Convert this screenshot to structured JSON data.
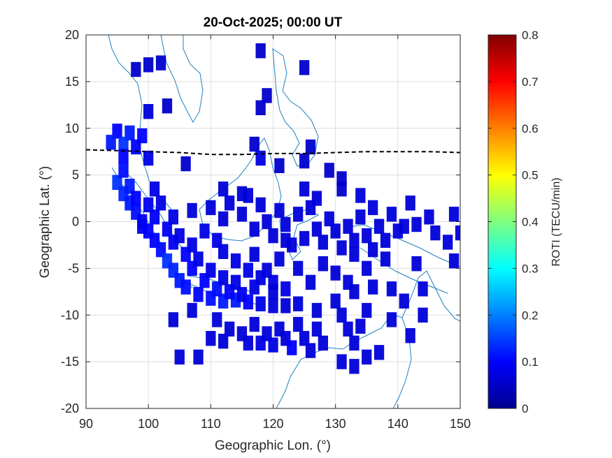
{
  "chart_data": {
    "type": "heatmap",
    "title": "20-Oct-2025; 00:00 UT",
    "xlabel": "Geographic Lon. (°)",
    "ylabel": "Geographic Lat. (°)",
    "xlim": [
      90,
      150
    ],
    "ylim": [
      -20,
      20
    ],
    "xticks": [
      "90",
      "100",
      "110",
      "120",
      "130",
      "140",
      "150"
    ],
    "yticks": [
      "20",
      "15",
      "10",
      "5",
      "0",
      "-5",
      "-10",
      "-15",
      "-20"
    ],
    "grid": true,
    "colorbar": {
      "label": "ROTI (TECU/min)",
      "range": [
        0,
        0.8
      ],
      "ticks": [
        "0.8",
        "0.7",
        "0.6",
        "0.5",
        "0.4",
        "0.3",
        "0.2",
        "0.1",
        "0"
      ],
      "colormap": "jet"
    },
    "magnetic_equator": [
      [
        90,
        7.7
      ],
      [
        95,
        7.6
      ],
      [
        100,
        7.5
      ],
      [
        105,
        7.4
      ],
      [
        110,
        7.2
      ],
      [
        115,
        7.2
      ],
      [
        120,
        7.3
      ],
      [
        125,
        7.3
      ],
      [
        130,
        7.4
      ],
      [
        135,
        7.5
      ],
      [
        140,
        7.5
      ],
      [
        145,
        7.5
      ],
      [
        150,
        7.4
      ]
    ],
    "cells": [
      [
        98,
        16.3,
        0.06
      ],
      [
        100,
        16.8,
        0.06
      ],
      [
        102,
        17.0,
        0.06
      ],
      [
        118,
        18.3,
        0.06
      ],
      [
        125,
        16.5,
        0.06
      ],
      [
        100,
        11.8,
        0.07
      ],
      [
        103,
        12.4,
        0.06
      ],
      [
        119,
        13.5,
        0.06
      ],
      [
        118,
        12.2,
        0.06
      ],
      [
        95,
        9.7,
        0.1
      ],
      [
        97,
        9.5,
        0.12
      ],
      [
        99,
        9.2,
        0.1
      ],
      [
        96,
        8.3,
        0.14
      ],
      [
        98,
        8.0,
        0.1
      ],
      [
        100,
        6.8,
        0.08
      ],
      [
        106,
        6.2,
        0.06
      ],
      [
        117,
        8.3,
        0.06
      ],
      [
        118,
        6.8,
        0.08
      ],
      [
        121,
        6.0,
        0.06
      ],
      [
        125,
        6.5,
        0.06
      ],
      [
        126,
        8.0,
        0.06
      ],
      [
        129,
        5.5,
        0.06
      ],
      [
        131,
        4.6,
        0.06
      ],
      [
        131,
        3.5,
        0.06
      ],
      [
        95,
        4.2,
        0.14
      ],
      [
        96,
        3.0,
        0.13
      ],
      [
        97,
        2.0,
        0.12
      ],
      [
        98,
        1.0,
        0.11
      ],
      [
        99,
        0.0,
        0.1
      ],
      [
        100,
        -1.0,
        0.1
      ],
      [
        101,
        -2.0,
        0.1
      ],
      [
        102,
        -3.0,
        0.11
      ],
      [
        103,
        -4.2,
        0.14
      ],
      [
        104,
        -5.2,
        0.13
      ],
      [
        105,
        -6.3,
        0.12
      ],
      [
        106,
        -7.0,
        0.11
      ],
      [
        108,
        -7.8,
        0.1
      ],
      [
        110,
        -8.2,
        0.11
      ],
      [
        112,
        -8.5,
        0.12
      ],
      [
        114,
        -8.4,
        0.12
      ],
      [
        116,
        -8.6,
        0.1
      ],
      [
        118,
        -8.8,
        0.08
      ],
      [
        120,
        -9.0,
        0.07
      ],
      [
        122,
        -9.0,
        0.07
      ],
      [
        124,
        -8.8,
        0.07
      ],
      [
        97,
        3.8,
        0.12
      ],
      [
        98,
        2.5,
        0.1
      ],
      [
        100,
        1.8,
        0.09
      ],
      [
        101,
        0.5,
        0.09
      ],
      [
        103,
        -0.8,
        0.09
      ],
      [
        104,
        -2.2,
        0.09
      ],
      [
        106,
        -3.5,
        0.1
      ],
      [
        107,
        -5.0,
        0.1
      ],
      [
        109,
        -6.3,
        0.1
      ],
      [
        111,
        -7.2,
        0.11
      ],
      [
        113,
        -7.5,
        0.1
      ],
      [
        115,
        -7.8,
        0.09
      ],
      [
        102,
        2.0,
        0.08
      ],
      [
        104,
        0.5,
        0.08
      ],
      [
        105,
        -1.5,
        0.08
      ],
      [
        107,
        -2.5,
        0.08
      ],
      [
        108,
        -4.0,
        0.08
      ],
      [
        110,
        -5.2,
        0.08
      ],
      [
        112,
        -6.0,
        0.08
      ],
      [
        114,
        -6.5,
        0.08
      ],
      [
        117,
        -7.0,
        0.08
      ],
      [
        109,
        -1.0,
        0.08
      ],
      [
        111,
        -2.0,
        0.08
      ],
      [
        112,
        -3.2,
        0.08
      ],
      [
        114,
        -4.2,
        0.08
      ],
      [
        116,
        -5.2,
        0.08
      ],
      [
        118,
        -6.0,
        0.08
      ],
      [
        120,
        -6.5,
        0.08
      ],
      [
        122,
        -7.2,
        0.08
      ],
      [
        110,
        1.5,
        0.07
      ],
      [
        112,
        0.3,
        0.07
      ],
      [
        113,
        2.0,
        0.07
      ],
      [
        115,
        0.8,
        0.07
      ],
      [
        116,
        2.8,
        0.07
      ],
      [
        117,
        -0.8,
        0.07
      ],
      [
        119,
        0.0,
        0.07
      ],
      [
        118,
        1.8,
        0.07
      ],
      [
        120,
        -1.5,
        0.07
      ],
      [
        121,
        1.2,
        0.07
      ],
      [
        122,
        -0.3,
        0.07
      ],
      [
        123,
        -2.5,
        0.07
      ],
      [
        124,
        0.8,
        0.07
      ],
      [
        125,
        -1.8,
        0.07
      ],
      [
        126,
        1.5,
        0.07
      ],
      [
        127,
        -0.8,
        0.07
      ],
      [
        128,
        -2.2,
        0.07
      ],
      [
        129,
        0.3,
        0.07
      ],
      [
        130,
        -1.0,
        0.07
      ],
      [
        131,
        -2.8,
        0.07
      ],
      [
        132,
        -0.5,
        0.07
      ],
      [
        133,
        -2.0,
        0.07
      ],
      [
        134,
        0.5,
        0.07
      ],
      [
        135,
        -1.5,
        0.07
      ],
      [
        136,
        1.5,
        0.07
      ],
      [
        137,
        -0.5,
        0.07
      ],
      [
        138,
        -2.0,
        0.07
      ],
      [
        139,
        0.8,
        0.07
      ],
      [
        140,
        -1.0,
        0.07
      ],
      [
        136,
        -3.0,
        0.07
      ],
      [
        138,
        -4.0,
        0.07
      ],
      [
        141,
        -0.5,
        0.07
      ],
      [
        142,
        2.0,
        0.07
      ],
      [
        143,
        -0.3,
        0.07
      ],
      [
        145,
        0.5,
        0.07
      ],
      [
        146,
        -1.2,
        0.07
      ],
      [
        148,
        -2.2,
        0.07
      ],
      [
        150,
        -1.2,
        0.07
      ],
      [
        149,
        0.8,
        0.07
      ],
      [
        149,
        -4.2,
        0.07
      ],
      [
        143,
        -4.5,
        0.07
      ],
      [
        144,
        -7.2,
        0.07
      ],
      [
        134,
        2.8,
        0.07
      ],
      [
        112,
        3.5,
        0.07
      ],
      [
        115,
        3.0,
        0.07
      ],
      [
        107,
        1.2,
        0.07
      ],
      [
        111,
        -10.5,
        0.07
      ],
      [
        113,
        -11.5,
        0.07
      ],
      [
        115,
        -12.0,
        0.07
      ],
      [
        117,
        -11.0,
        0.07
      ],
      [
        119,
        -12.0,
        0.07
      ],
      [
        121,
        -11.5,
        0.07
      ],
      [
        122,
        -12.5,
        0.07
      ],
      [
        124,
        -11.0,
        0.07
      ],
      [
        125,
        -12.5,
        0.07
      ],
      [
        127,
        -11.5,
        0.07
      ],
      [
        128,
        -13.0,
        0.07
      ],
      [
        116,
        -13.0,
        0.07
      ],
      [
        118,
        -13.0,
        0.08
      ],
      [
        120,
        -13.2,
        0.08
      ],
      [
        123,
        -13.5,
        0.1
      ],
      [
        126,
        -13.8,
        0.07
      ],
      [
        110,
        -12.5,
        0.07
      ],
      [
        112,
        -12.8,
        0.07
      ],
      [
        127,
        -9.5,
        0.07
      ],
      [
        130,
        -8.5,
        0.07
      ],
      [
        131,
        -10.0,
        0.07
      ],
      [
        132,
        -11.5,
        0.07
      ],
      [
        133,
        -13.0,
        0.07
      ],
      [
        134,
        -11.2,
        0.07
      ],
      [
        135,
        -9.5,
        0.07
      ],
      [
        133,
        -7.5,
        0.07
      ],
      [
        136,
        -7.0,
        0.07
      ],
      [
        139,
        -7.2,
        0.07
      ],
      [
        137,
        -14.0,
        0.07
      ],
      [
        131,
        -15.0,
        0.07
      ],
      [
        133,
        -15.5,
        0.07
      ],
      [
        135,
        -14.5,
        0.07
      ],
      [
        105,
        -14.5,
        0.07
      ],
      [
        108,
        -14.5,
        0.07
      ],
      [
        104,
        -10.5,
        0.07
      ],
      [
        107,
        -9.5,
        0.07
      ],
      [
        141,
        -8.5,
        0.07
      ],
      [
        139,
        -10.5,
        0.07
      ],
      [
        142,
        -12.2,
        0.07
      ],
      [
        144,
        -10.0,
        0.07
      ],
      [
        128,
        -4.5,
        0.07
      ],
      [
        130,
        -5.5,
        0.07
      ],
      [
        126,
        -6.5,
        0.07
      ],
      [
        124,
        -5.0,
        0.07
      ],
      [
        121,
        -4.0,
        0.07
      ],
      [
        119,
        -5.2,
        0.07
      ],
      [
        117,
        -3.5,
        0.07
      ],
      [
        122,
        -2.0,
        0.07
      ],
      [
        135,
        -5.0,
        0.07
      ],
      [
        133,
        -3.5,
        0.07
      ],
      [
        132,
        -6.5,
        0.07
      ],
      [
        120,
        -7.5,
        0.07
      ],
      [
        99,
        -0.5,
        0.09
      ],
      [
        101,
        3.5,
        0.08
      ],
      [
        96,
        7.0,
        0.1
      ],
      [
        94,
        8.5,
        0.12
      ],
      [
        96,
        5.5,
        0.11
      ],
      [
        127,
        2.5,
        0.07
      ],
      [
        125,
        3.5,
        0.07
      ]
    ]
  }
}
